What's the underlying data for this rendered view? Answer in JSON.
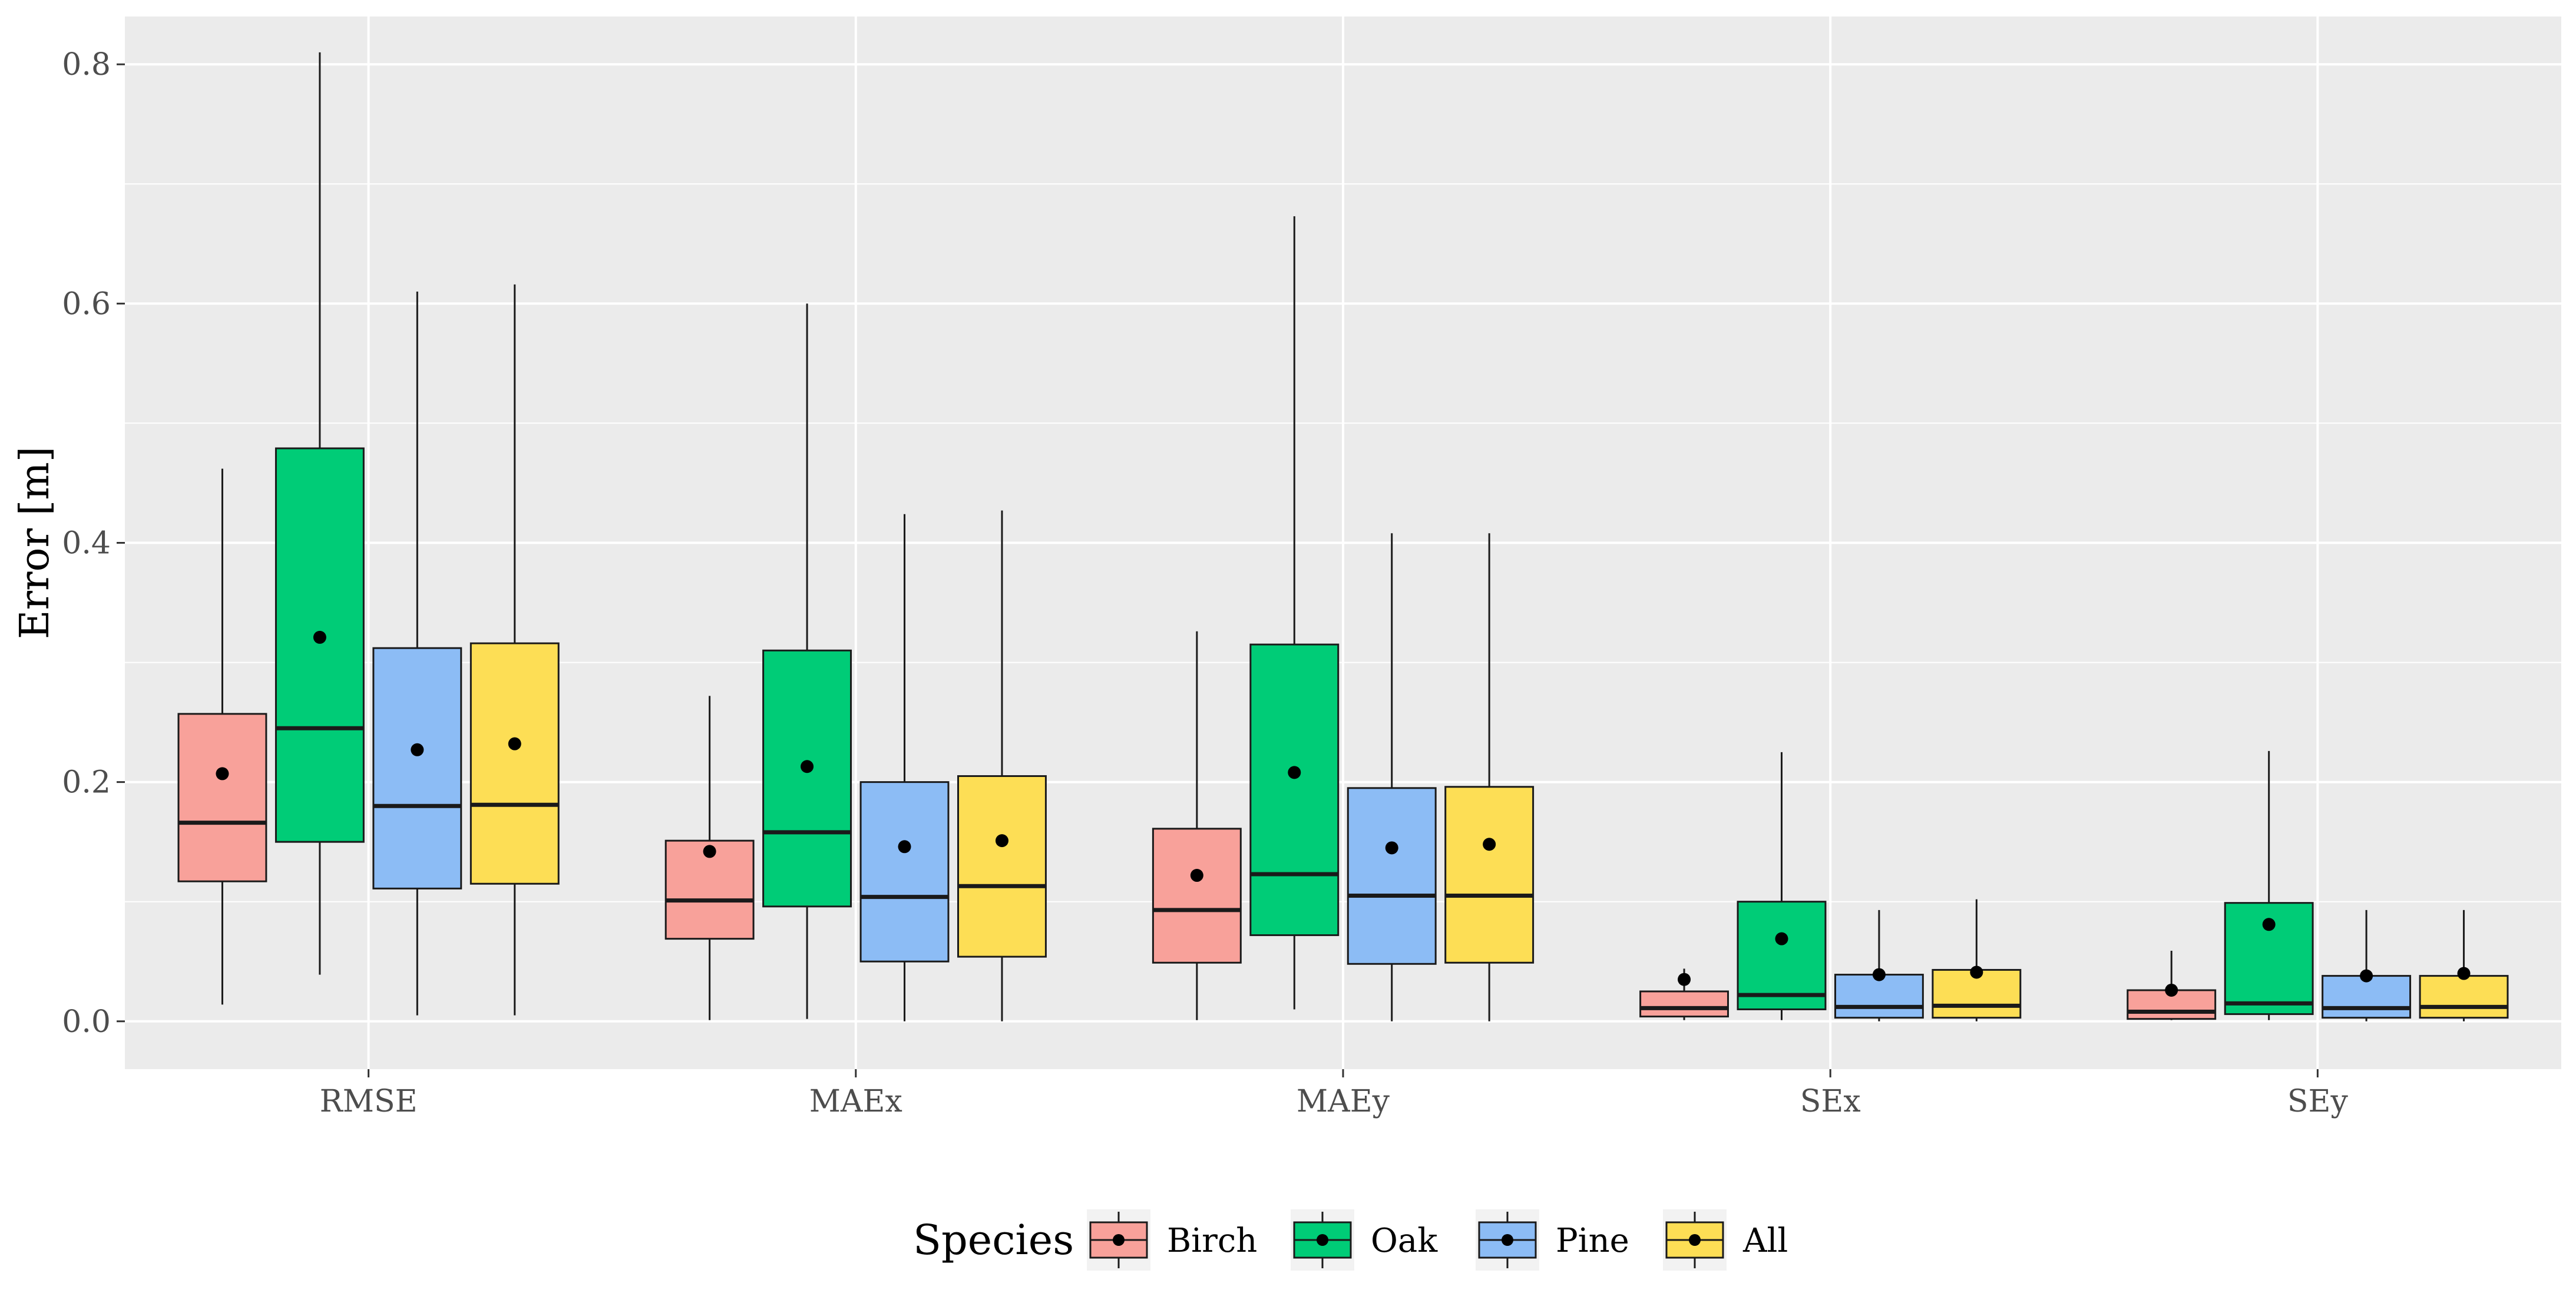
{
  "chart_data": {
    "type": "boxplot",
    "title": "",
    "xlabel": "",
    "ylabel": "Error [m]",
    "ylim": [
      -0.04,
      0.84
    ],
    "yticks": [
      0.0,
      0.2,
      0.4,
      0.6,
      0.8
    ],
    "ytick_labels": [
      "0.0",
      "0.2",
      "0.4",
      "0.6",
      "0.8"
    ],
    "categories": [
      "RMSE",
      "MAEx",
      "MAEy",
      "SEx",
      "SEy"
    ],
    "grid": true,
    "background": "#ebebeb",
    "legend": {
      "title": "Species",
      "position": "bottom",
      "entries": [
        "Birch",
        "Oak",
        "Pine",
        "All"
      ]
    },
    "series": [
      {
        "name": "Birch",
        "color": "#f8a19a",
        "stats": [
          {
            "category": "RMSE",
            "min": 0.014,
            "q1": 0.117,
            "median": 0.166,
            "q3": 0.257,
            "max": 0.462,
            "mean": 0.207
          },
          {
            "category": "MAEx",
            "min": 0.001,
            "q1": 0.069,
            "median": 0.101,
            "q3": 0.151,
            "max": 0.272,
            "mean": 0.142
          },
          {
            "category": "MAEy",
            "min": 0.001,
            "q1": 0.049,
            "median": 0.093,
            "q3": 0.161,
            "max": 0.326,
            "mean": 0.122
          },
          {
            "category": "SEx",
            "min": 0.001,
            "q1": 0.004,
            "median": 0.011,
            "q3": 0.025,
            "max": 0.044,
            "mean": 0.035
          },
          {
            "category": "SEy",
            "min": 0.001,
            "q1": 0.002,
            "median": 0.008,
            "q3": 0.026,
            "max": 0.059,
            "mean": 0.026
          }
        ]
      },
      {
        "name": "Oak",
        "color": "#00cc77",
        "stats": [
          {
            "category": "RMSE",
            "min": 0.039,
            "q1": 0.15,
            "median": 0.245,
            "q3": 0.479,
            "max": 0.81,
            "mean": 0.321
          },
          {
            "category": "MAEx",
            "min": 0.002,
            "q1": 0.096,
            "median": 0.158,
            "q3": 0.31,
            "max": 0.6,
            "mean": 0.213
          },
          {
            "category": "MAEy",
            "min": 0.01,
            "q1": 0.072,
            "median": 0.123,
            "q3": 0.315,
            "max": 0.673,
            "mean": 0.208
          },
          {
            "category": "SEx",
            "min": 0.001,
            "q1": 0.01,
            "median": 0.022,
            "q3": 0.1,
            "max": 0.225,
            "mean": 0.069
          },
          {
            "category": "SEy",
            "min": 0.001,
            "q1": 0.006,
            "median": 0.015,
            "q3": 0.099,
            "max": 0.226,
            "mean": 0.081
          }
        ]
      },
      {
        "name": "Pine",
        "color": "#8cbcf5",
        "stats": [
          {
            "category": "RMSE",
            "min": 0.005,
            "q1": 0.111,
            "median": 0.18,
            "q3": 0.312,
            "max": 0.61,
            "mean": 0.227
          },
          {
            "category": "MAEx",
            "min": 0.0,
            "q1": 0.05,
            "median": 0.104,
            "q3": 0.2,
            "max": 0.424,
            "mean": 0.146
          },
          {
            "category": "MAEy",
            "min": 0.0,
            "q1": 0.048,
            "median": 0.105,
            "q3": 0.195,
            "max": 0.408,
            "mean": 0.145
          },
          {
            "category": "SEx",
            "min": 0.0,
            "q1": 0.003,
            "median": 0.012,
            "q3": 0.039,
            "max": 0.093,
            "mean": 0.039
          },
          {
            "category": "SEy",
            "min": 0.0,
            "q1": 0.003,
            "median": 0.011,
            "q3": 0.038,
            "max": 0.093,
            "mean": 0.038
          }
        ]
      },
      {
        "name": "All",
        "color": "#fdde55",
        "stats": [
          {
            "category": "RMSE",
            "min": 0.005,
            "q1": 0.115,
            "median": 0.181,
            "q3": 0.316,
            "max": 0.616,
            "mean": 0.232
          },
          {
            "category": "MAEx",
            "min": 0.0,
            "q1": 0.054,
            "median": 0.113,
            "q3": 0.205,
            "max": 0.427,
            "mean": 0.151
          },
          {
            "category": "MAEy",
            "min": 0.0,
            "q1": 0.049,
            "median": 0.105,
            "q3": 0.196,
            "max": 0.408,
            "mean": 0.148
          },
          {
            "category": "SEx",
            "min": 0.0,
            "q1": 0.003,
            "median": 0.013,
            "q3": 0.043,
            "max": 0.102,
            "mean": 0.041
          },
          {
            "category": "SEy",
            "min": 0.0,
            "q1": 0.003,
            "median": 0.012,
            "q3": 0.038,
            "max": 0.093,
            "mean": 0.04
          }
        ]
      }
    ]
  }
}
